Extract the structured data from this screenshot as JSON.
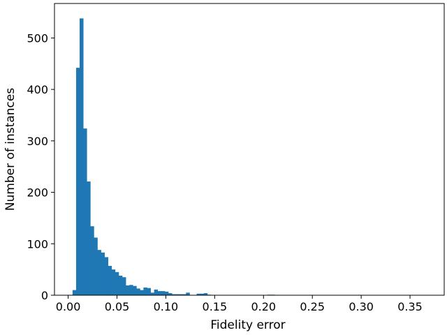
{
  "chart_data": {
    "type": "bar",
    "subtype": "histogram",
    "xlabel": "Fidelity error",
    "ylabel": "Number of instances",
    "xlim": [
      -0.014,
      0.385
    ],
    "ylim": [
      0,
      567
    ],
    "bar_color": "#1f77b4",
    "x_ticks": [
      0.0,
      0.05,
      0.1,
      0.15,
      0.2,
      0.25,
      0.3,
      0.35
    ],
    "x_tick_labels": [
      "0.00",
      "0.05",
      "0.10",
      "0.15",
      "0.20",
      "0.25",
      "0.30",
      "0.35"
    ],
    "y_ticks": [
      0,
      100,
      200,
      300,
      400,
      500
    ],
    "y_tick_labels": [
      "0",
      "100",
      "200",
      "300",
      "400",
      "500"
    ],
    "bin_start": 0.0045,
    "bin_width": 0.00363,
    "counts": [
      10,
      442,
      538,
      324,
      221,
      134,
      112,
      88,
      83,
      74,
      57,
      50,
      45,
      38,
      35,
      19,
      20,
      18,
      13,
      10,
      15,
      14,
      5,
      11,
      8,
      8,
      7,
      4,
      2,
      2,
      2,
      2,
      5,
      0,
      0,
      3,
      3,
      4,
      1,
      0,
      0,
      0,
      0,
      0,
      0,
      0,
      0,
      0,
      0,
      0,
      0,
      0,
      0,
      0,
      0,
      1,
      1
    ]
  }
}
